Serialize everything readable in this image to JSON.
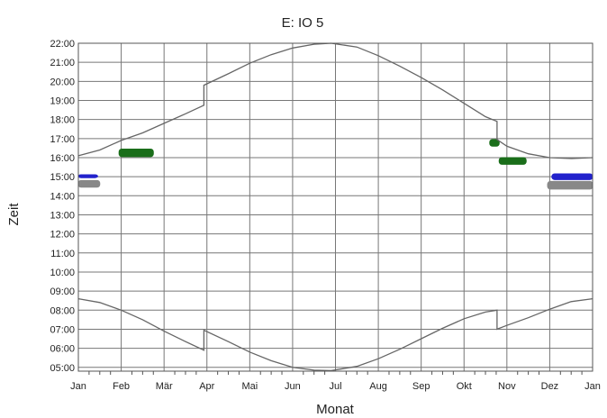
{
  "chart_data": {
    "type": "line",
    "title": "E: IO 5",
    "xlabel": "Monat",
    "ylabel": "Zeit",
    "x_tick_labels": [
      "Jan",
      "Feb",
      "Mär",
      "Apr",
      "Mai",
      "Jun",
      "Jul",
      "Aug",
      "Sep",
      "Okt",
      "Nov",
      "Dez",
      "Jan"
    ],
    "y_tick_labels": [
      "05:00",
      "06:00",
      "07:00",
      "08:00",
      "09:00",
      "10:00",
      "11:00",
      "12:00",
      "13:00",
      "14:00",
      "15:00",
      "16:00",
      "17:00",
      "18:00",
      "19:00",
      "20:00",
      "21:00",
      "22:00"
    ],
    "xlim": [
      0,
      12
    ],
    "ylim": [
      4.8,
      22.0
    ],
    "grid": true,
    "series": [
      {
        "color": "#666666",
        "points": [
          [
            0.0,
            16.1
          ],
          [
            0.5,
            16.4
          ],
          [
            1.0,
            16.9
          ],
          [
            1.5,
            17.3
          ],
          [
            2.0,
            17.8
          ],
          [
            2.5,
            18.3
          ],
          [
            2.93,
            18.75
          ],
          [
            2.93,
            19.8
          ],
          [
            3.5,
            20.4
          ],
          [
            4.0,
            20.95
          ],
          [
            4.5,
            21.4
          ],
          [
            5.0,
            21.75
          ],
          [
            5.5,
            21.95
          ],
          [
            5.9,
            22.0
          ],
          [
            6.5,
            21.8
          ],
          [
            7.0,
            21.35
          ],
          [
            7.5,
            20.8
          ],
          [
            8.0,
            20.2
          ],
          [
            8.5,
            19.55
          ],
          [
            9.0,
            18.85
          ],
          [
            9.5,
            18.15
          ],
          [
            9.77,
            17.9
          ],
          [
            9.77,
            16.95
          ],
          [
            10.0,
            16.6
          ],
          [
            10.5,
            16.2
          ],
          [
            11.0,
            16.0
          ],
          [
            11.5,
            15.95
          ],
          [
            12.0,
            16.0
          ]
        ]
      },
      {
        "color": "#666666",
        "points": [
          [
            0.0,
            8.6
          ],
          [
            0.5,
            8.4
          ],
          [
            1.0,
            8.0
          ],
          [
            1.5,
            7.5
          ],
          [
            2.0,
            6.9
          ],
          [
            2.5,
            6.35
          ],
          [
            2.93,
            5.9
          ],
          [
            2.93,
            6.95
          ],
          [
            3.5,
            6.35
          ],
          [
            4.0,
            5.8
          ],
          [
            4.5,
            5.35
          ],
          [
            5.0,
            5.0
          ],
          [
            5.5,
            4.85
          ],
          [
            5.9,
            4.83
          ],
          [
            6.5,
            5.05
          ],
          [
            7.0,
            5.45
          ],
          [
            7.5,
            5.95
          ],
          [
            8.0,
            6.5
          ],
          [
            8.5,
            7.05
          ],
          [
            9.0,
            7.55
          ],
          [
            9.5,
            7.9
          ],
          [
            9.77,
            8.0
          ],
          [
            9.77,
            7.0
          ],
          [
            10.0,
            7.2
          ],
          [
            10.5,
            7.6
          ],
          [
            11.0,
            8.05
          ],
          [
            11.5,
            8.45
          ],
          [
            12.0,
            8.6
          ]
        ]
      }
    ],
    "clusters": [
      {
        "color": "#1a6e1a",
        "x": [
          0.95,
          1.75
        ],
        "y": [
          16.05,
          16.45
        ]
      },
      {
        "color": "#1a6e1a",
        "x": [
          9.6,
          9.82
        ],
        "y": [
          16.6,
          16.95
        ]
      },
      {
        "color": "#1a6e1a",
        "x": [
          9.82,
          10.45
        ],
        "y": [
          15.65,
          16.0
        ]
      },
      {
        "color": "#2222cc",
        "x": [
          0.0,
          0.45
        ],
        "y": [
          14.95,
          15.1
        ]
      },
      {
        "color": "#888888",
        "x": [
          0.0,
          0.5
        ],
        "y": [
          14.45,
          14.8
        ]
      },
      {
        "color": "#2222cc",
        "x": [
          11.05,
          12.0
        ],
        "y": [
          14.85,
          15.15
        ]
      },
      {
        "color": "#888888",
        "x": [
          10.95,
          12.0
        ],
        "y": [
          14.35,
          14.75
        ]
      }
    ]
  }
}
